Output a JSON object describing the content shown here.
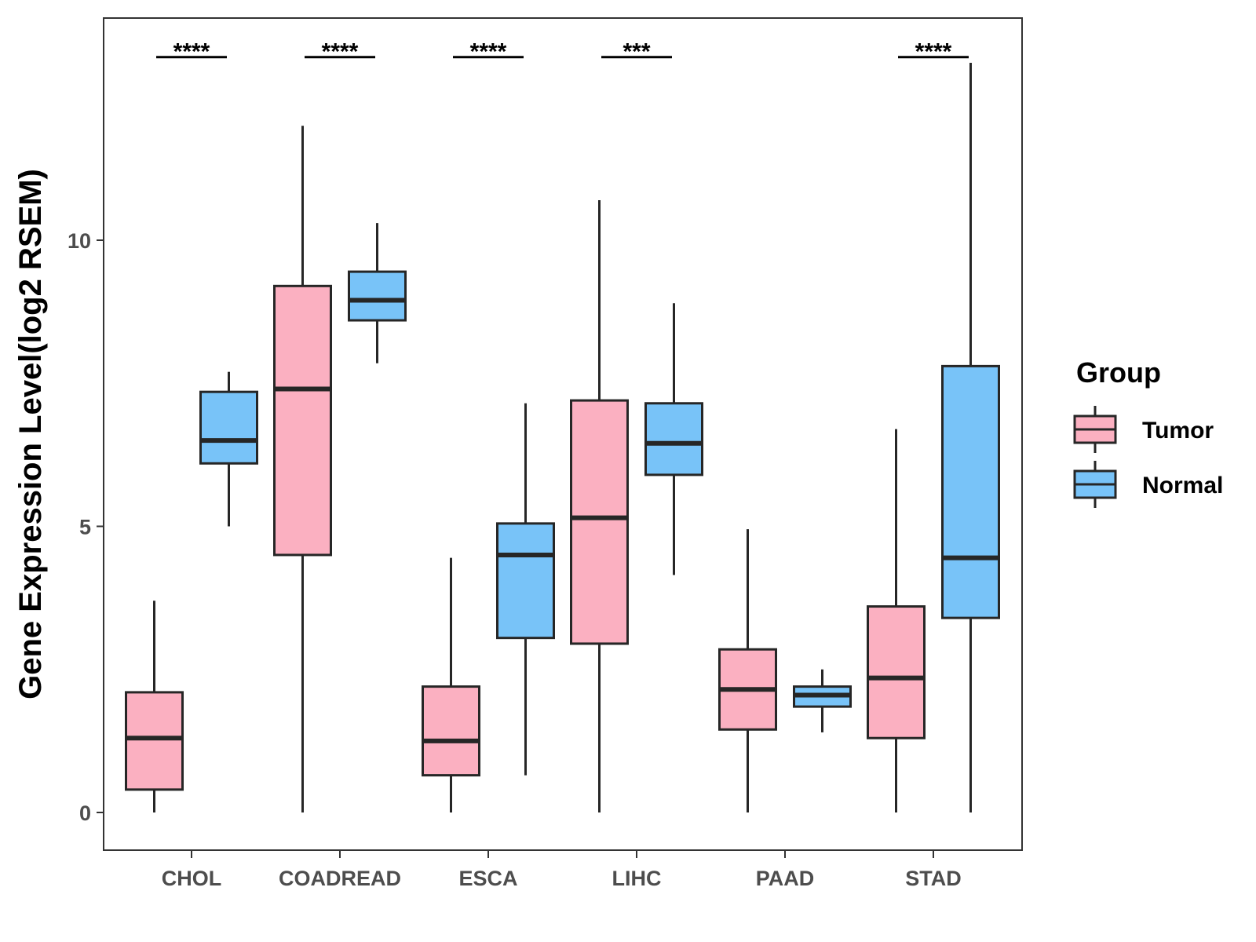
{
  "chart_data": {
    "type": "boxplot",
    "title": "",
    "xlabel": "",
    "ylabel": "Gene Expression Level(log2 RSEM)",
    "ylim": [
      -0.65,
      13.9
    ],
    "yticks": [
      0,
      5,
      10
    ],
    "grid": false,
    "legend_position": "right",
    "legend": {
      "title": "Group",
      "entries": [
        {
          "name": "Tumor",
          "color": "#FBB0C1"
        },
        {
          "name": "Normal",
          "color": "#78C3F8"
        }
      ]
    },
    "categories": [
      "CHOL",
      "COADREAD",
      "ESCA",
      "LIHC",
      "PAAD",
      "STAD"
    ],
    "series": [
      {
        "name": "Tumor",
        "color": "#FBB0C1",
        "boxes": [
          {
            "min": 0.0,
            "q1": 0.4,
            "median": 1.3,
            "q3": 2.1,
            "max": 3.7
          },
          {
            "min": 0.0,
            "q1": 4.5,
            "median": 7.4,
            "q3": 9.2,
            "max": 12.0
          },
          {
            "min": 0.0,
            "q1": 0.65,
            "median": 1.25,
            "q3": 2.2,
            "max": 4.45
          },
          {
            "min": 0.0,
            "q1": 2.95,
            "median": 5.15,
            "q3": 7.2,
            "max": 10.7
          },
          {
            "min": 0.0,
            "q1": 1.45,
            "median": 2.15,
            "q3": 2.85,
            "max": 4.95
          },
          {
            "min": 0.0,
            "q1": 1.3,
            "median": 2.35,
            "q3": 3.6,
            "max": 6.7
          }
        ]
      },
      {
        "name": "Normal",
        "color": "#78C3F8",
        "boxes": [
          {
            "min": 5.0,
            "q1": 6.1,
            "median": 6.5,
            "q3": 7.35,
            "max": 7.7
          },
          {
            "min": 7.85,
            "q1": 8.6,
            "median": 8.95,
            "q3": 9.45,
            "max": 10.3
          },
          {
            "min": 0.65,
            "q1": 3.05,
            "median": 4.5,
            "q3": 5.05,
            "max": 7.15
          },
          {
            "min": 4.15,
            "q1": 5.9,
            "median": 6.45,
            "q3": 7.15,
            "max": 8.9
          },
          {
            "min": 1.4,
            "q1": 1.85,
            "median": 2.05,
            "q3": 2.2,
            "max": 2.5
          },
          {
            "min": 0.0,
            "q1": 3.4,
            "median": 4.45,
            "q3": 7.8,
            "max": 13.1
          }
        ]
      }
    ],
    "significance": [
      {
        "category": "CHOL",
        "label": "****",
        "y": 13.2
      },
      {
        "category": "COADREAD",
        "label": "****",
        "y": 13.2
      },
      {
        "category": "ESCA",
        "label": "****",
        "y": 13.2
      },
      {
        "category": "LIHC",
        "label": "***",
        "y": 13.2
      },
      {
        "category": "PAAD",
        "label": "",
        "y": 13.2
      },
      {
        "category": "STAD",
        "label": "****",
        "y": 13.2
      }
    ]
  }
}
